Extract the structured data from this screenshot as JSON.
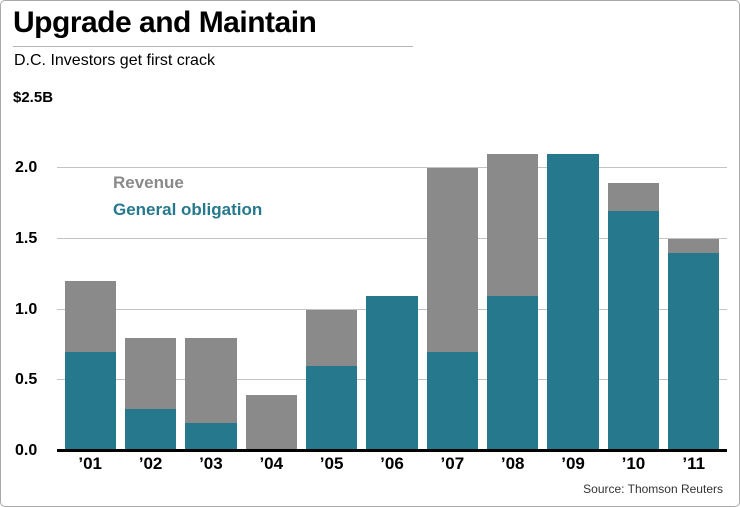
{
  "title": "Upgrade and Maintain",
  "subtitle": "D.C. Investors get first crack",
  "unit_label": "$2.5B",
  "source": "Source: Thomson Reuters",
  "colors": {
    "revenue": "#8a8a8a",
    "general_obligation": "#26798c",
    "grid": "#c3c3c3",
    "baseline": "#000000"
  },
  "legend": [
    {
      "label": "Revenue",
      "color": "#8a8a8a"
    },
    {
      "label": "General obligation",
      "color": "#26798c"
    }
  ],
  "chart_data": {
    "type": "bar",
    "stacked": true,
    "title": "Upgrade and Maintain",
    "subtitle": "D.C. Investors get first crack",
    "categories": [
      "’01",
      "’02",
      "’03",
      "’04",
      "’05",
      "’06",
      "’07",
      "’08",
      "’09",
      "’10",
      "’11"
    ],
    "series": [
      {
        "name": "General obligation",
        "color": "#26798c",
        "values": [
          0.7,
          0.3,
          0.2,
          0.0,
          0.6,
          1.1,
          0.7,
          1.1,
          2.1,
          1.7,
          1.4
        ]
      },
      {
        "name": "Revenue",
        "color": "#8a8a8a",
        "values": [
          0.5,
          0.5,
          0.6,
          0.4,
          0.4,
          0.0,
          1.3,
          1.0,
          0.0,
          0.2,
          0.1
        ]
      }
    ],
    "totals": [
      1.2,
      0.8,
      0.8,
      0.4,
      1.0,
      1.1,
      2.0,
      2.1,
      2.1,
      1.9,
      1.5
    ],
    "xlabel": "",
    "ylabel": "$2.5B",
    "ylim": [
      0,
      2.35
    ],
    "yticks": [
      0.0,
      0.5,
      1.0,
      1.5,
      2.0
    ],
    "grid": true,
    "legend_position": "inside-top-left"
  }
}
